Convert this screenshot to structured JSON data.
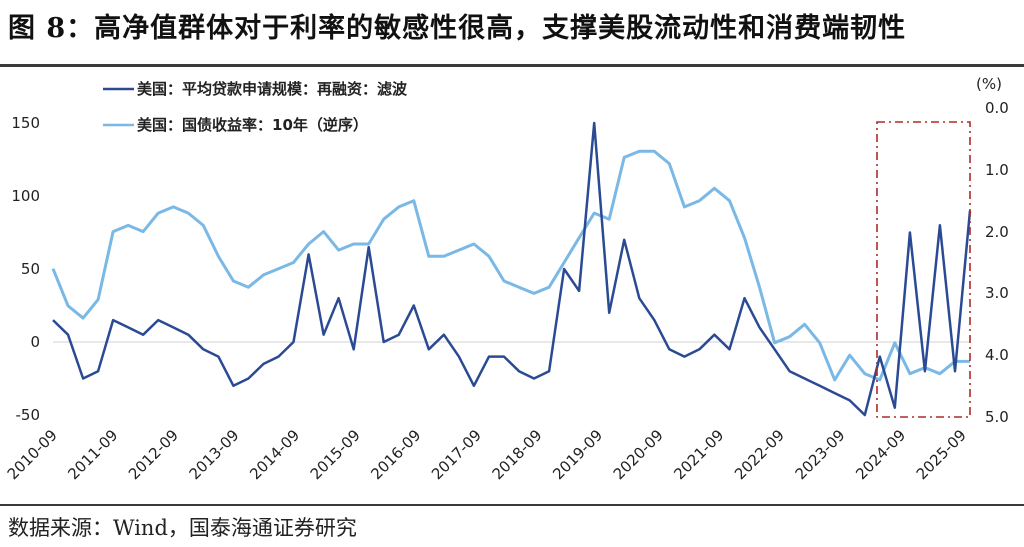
{
  "header": {
    "title": "图 8：高净值群体对于利率的敏感性很高，支撑美股流动性和消费端韧性"
  },
  "footer": {
    "source": "数据来源：Wind，国泰海通证券研究"
  },
  "colors": {
    "series_dark": "#2b4a94",
    "series_light": "#7ab8e6",
    "highlight_box": "#b02a2a",
    "zero_line": "#cfcfcf"
  },
  "chart_data": {
    "type": "line",
    "title": "图 8：高净值群体对于利率的敏感性很高，支撑美股流动性和消费端韧性",
    "xlabel": "",
    "ylabel_left": "",
    "ylabel_right": "(%)",
    "right_axis_unit": "(%)",
    "left_ylim": [
      -50,
      150
    ],
    "right_ylim": [
      0.0,
      5.0
    ],
    "right_axis_inverted": true,
    "left_ticks": [
      "150",
      "100",
      "50",
      "0",
      "-50"
    ],
    "right_ticks": [
      "0.0",
      "1.0",
      "2.0",
      "3.0",
      "4.0",
      "5.0"
    ],
    "x_ticks": [
      "2010-09",
      "2011-09",
      "2012-09",
      "2013-09",
      "2014-09",
      "2015-09",
      "2016-09",
      "2017-09",
      "2018-09",
      "2019-09",
      "2020-09",
      "2021-09",
      "2022-09",
      "2023-09",
      "2024-09",
      "2025-09"
    ],
    "grid": false,
    "legend_position": "top-left",
    "annotations": [
      {
        "type": "dash-dot-box",
        "x_range": [
          "2024-06",
          "2025-12"
        ],
        "note": "highlighted recent period"
      }
    ],
    "x": [
      "2010-09",
      "2010-12",
      "2011-03",
      "2011-06",
      "2011-09",
      "2011-12",
      "2012-03",
      "2012-06",
      "2012-09",
      "2012-12",
      "2013-03",
      "2013-06",
      "2013-09",
      "2013-12",
      "2014-03",
      "2014-06",
      "2014-09",
      "2014-12",
      "2015-03",
      "2015-06",
      "2015-09",
      "2015-12",
      "2016-03",
      "2016-06",
      "2016-09",
      "2016-12",
      "2017-03",
      "2017-06",
      "2017-09",
      "2017-12",
      "2018-03",
      "2018-06",
      "2018-09",
      "2018-12",
      "2019-03",
      "2019-06",
      "2019-09",
      "2019-12",
      "2020-03",
      "2020-06",
      "2020-09",
      "2020-12",
      "2021-03",
      "2021-06",
      "2021-09",
      "2021-12",
      "2022-03",
      "2022-06",
      "2022-09",
      "2022-12",
      "2023-03",
      "2023-06",
      "2023-09",
      "2023-12",
      "2024-03",
      "2024-06",
      "2024-09",
      "2024-12",
      "2025-03",
      "2025-06",
      "2025-09",
      "2025-12"
    ],
    "series": [
      {
        "name": "美国：平均贷款申请规模：再融资：滤波",
        "axis": "left",
        "values": [
          15,
          5,
          -25,
          -20,
          15,
          10,
          5,
          15,
          10,
          5,
          -5,
          -10,
          -30,
          -25,
          -15,
          -10,
          0,
          60,
          5,
          30,
          -5,
          65,
          0,
          5,
          25,
          -5,
          5,
          -10,
          -30,
          -10,
          -10,
          -20,
          -25,
          -20,
          50,
          35,
          150,
          20,
          70,
          30,
          15,
          -5,
          -10,
          -5,
          5,
          -5,
          30,
          10,
          -5,
          -20,
          -25,
          -30,
          -35,
          -40,
          -50,
          -10,
          -45,
          75,
          -20,
          80,
          -20,
          90
        ]
      },
      {
        "name": "美国：国债收益率：10年（逆序）",
        "axis": "right",
        "values": [
          2.6,
          3.2,
          3.4,
          3.1,
          2.0,
          1.9,
          2.0,
          1.7,
          1.6,
          1.7,
          1.9,
          2.4,
          2.8,
          2.9,
          2.7,
          2.6,
          2.5,
          2.2,
          2.0,
          2.3,
          2.2,
          2.2,
          1.8,
          1.6,
          1.5,
          2.4,
          2.4,
          2.3,
          2.2,
          2.4,
          2.8,
          2.9,
          3.0,
          2.9,
          2.5,
          2.1,
          1.7,
          1.8,
          0.8,
          0.7,
          0.7,
          0.9,
          1.6,
          1.5,
          1.3,
          1.5,
          2.1,
          2.9,
          3.8,
          3.7,
          3.5,
          3.8,
          4.4,
          4.0,
          4.3,
          4.4,
          3.8,
          4.3,
          4.2,
          4.3,
          4.1,
          4.1
        ]
      }
    ]
  },
  "legend": {
    "items": [
      {
        "label": "美国：平均贷款申请规模：再融资：滤波"
      },
      {
        "label": "美国：国债收益率：10年（逆序）"
      }
    ]
  }
}
